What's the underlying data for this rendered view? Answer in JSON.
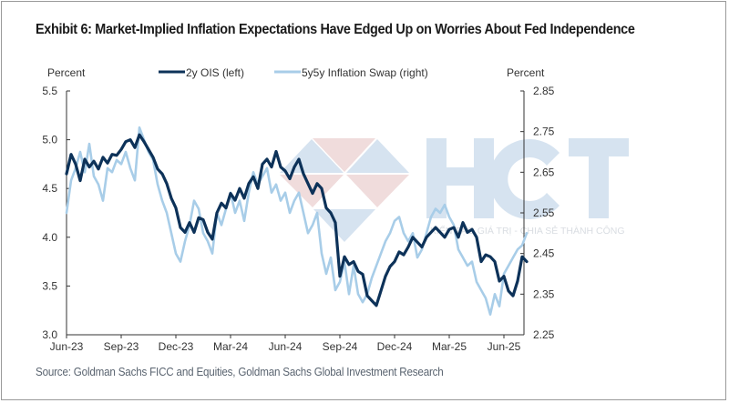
{
  "title": "Exhibit 6: Market-Implied Inflation Expectations Have Edged Up on Worries About Fed Independence",
  "source": "Source: Goldman Sachs FICC and Equities, Goldman Sachs Global Investment Research",
  "watermark": {
    "text": "HCT",
    "tagline": "KIẾN TẠO GIÁ TRỊ - CHIA SẺ THÀNH CÔNG",
    "colors": {
      "blue": "#d6e3f0",
      "red": "#f0dcdc"
    }
  },
  "chart_data": {
    "type": "line",
    "title": "Exhibit 6: Market-Implied Inflation Expectations Have Edged Up on Worries About Fed Independence",
    "xlabel": "",
    "ylabel_left": "Percent",
    "ylabel_right": "Percent",
    "grid": false,
    "legend_placement": "top-center",
    "x_tick_labels": [
      "Jun-23",
      "Sep-23",
      "Dec-23",
      "Mar-24",
      "Jun-24",
      "Sep-24",
      "Dec-24",
      "Mar-25",
      "Jun-25"
    ],
    "x_range_months": [
      0,
      26
    ],
    "y_left": {
      "range": [
        3.0,
        5.5
      ],
      "ticks": [
        "3.0",
        "3.5",
        "4.0",
        "4.5",
        "5.0",
        "5.5"
      ]
    },
    "y_right": {
      "range": [
        2.25,
        2.85
      ],
      "ticks": [
        "2.25",
        "2.35",
        "2.45",
        "2.55",
        "2.65",
        "2.75",
        "2.85"
      ]
    },
    "series": [
      {
        "name": "2y OIS (left)",
        "axis": "left",
        "color": "#0d3259",
        "x_months": [
          0,
          0.25,
          0.5,
          0.75,
          1,
          1.25,
          1.5,
          1.75,
          2,
          2.25,
          2.5,
          2.75,
          3,
          3.25,
          3.5,
          3.75,
          4,
          4.25,
          4.5,
          4.75,
          5,
          5.25,
          5.5,
          5.75,
          6,
          6.25,
          6.5,
          6.75,
          7,
          7.25,
          7.5,
          7.75,
          8,
          8.25,
          8.5,
          8.75,
          9,
          9.25,
          9.5,
          9.75,
          10,
          10.25,
          10.5,
          10.75,
          11,
          11.25,
          11.5,
          11.75,
          12,
          12.25,
          12.5,
          12.75,
          13,
          13.25,
          13.5,
          13.75,
          14,
          14.25,
          14.5,
          14.75,
          15,
          15.25,
          15.5,
          15.75,
          16,
          16.25,
          16.5,
          16.75,
          17,
          17.25,
          17.5,
          17.75,
          18,
          18.25,
          18.5,
          18.75,
          19,
          19.25,
          19.5,
          19.75,
          20,
          20.25,
          20.5,
          20.75,
          21,
          21.25,
          21.5,
          21.75,
          22,
          22.25,
          22.5,
          22.75,
          23,
          23.25,
          23.5,
          23.75,
          24,
          24.25,
          24.5,
          24.75,
          25,
          25.25
        ],
        "values": [
          4.65,
          4.85,
          4.75,
          4.58,
          4.8,
          4.72,
          4.78,
          4.7,
          4.82,
          4.76,
          4.85,
          4.84,
          4.9,
          4.98,
          5.0,
          4.92,
          5.05,
          4.98,
          4.9,
          4.82,
          4.7,
          4.65,
          4.55,
          4.4,
          4.3,
          4.1,
          4.05,
          4.15,
          4.05,
          4.2,
          4.18,
          4.05,
          3.98,
          4.25,
          4.35,
          4.3,
          4.45,
          4.38,
          4.5,
          4.4,
          4.55,
          4.62,
          4.5,
          4.75,
          4.8,
          4.72,
          4.88,
          4.72,
          4.68,
          4.6,
          4.72,
          4.8,
          4.65,
          4.55,
          4.45,
          4.55,
          4.5,
          4.3,
          4.25,
          4.15,
          3.6,
          3.8,
          3.72,
          3.75,
          3.65,
          3.62,
          3.4,
          3.35,
          3.3,
          3.45,
          3.6,
          3.7,
          3.75,
          3.85,
          3.82,
          3.9,
          4.0,
          3.95,
          3.9,
          4.0,
          4.05,
          4.1,
          4.05,
          4.0,
          4.08,
          4.1,
          4.0,
          4.15,
          4.05,
          4.08,
          4.0,
          3.75,
          3.82,
          3.8,
          3.75,
          3.55,
          3.6,
          3.45,
          3.4,
          3.55,
          3.8,
          3.75,
          3.72,
          3.6
        ]
      },
      {
        "name": "5y5y Inflation Swap (right)",
        "axis": "right",
        "color": "#a8cde8",
        "x_months": [
          0,
          0.25,
          0.5,
          0.75,
          1,
          1.25,
          1.5,
          1.75,
          2,
          2.25,
          2.5,
          2.75,
          3,
          3.25,
          3.5,
          3.75,
          4,
          4.25,
          4.5,
          4.75,
          5,
          5.25,
          5.5,
          5.75,
          6,
          6.25,
          6.5,
          6.75,
          7,
          7.25,
          7.5,
          7.75,
          8,
          8.25,
          8.5,
          8.75,
          9,
          9.25,
          9.5,
          9.75,
          10,
          10.25,
          10.5,
          10.75,
          11,
          11.25,
          11.5,
          11.75,
          12,
          12.25,
          12.5,
          12.75,
          13,
          13.25,
          13.5,
          13.75,
          14,
          14.25,
          14.5,
          14.75,
          15,
          15.25,
          15.5,
          15.75,
          16,
          16.25,
          16.5,
          16.75,
          17,
          17.25,
          17.5,
          17.75,
          18,
          18.25,
          18.5,
          18.75,
          19,
          19.25,
          19.5,
          19.75,
          20,
          20.25,
          20.5,
          20.75,
          21,
          21.25,
          21.5,
          21.75,
          22,
          22.25,
          22.5,
          22.75,
          23,
          23.25,
          23.5,
          23.75,
          24,
          24.25,
          24.5,
          24.75,
          25,
          25.25
        ],
        "values": [
          2.55,
          2.63,
          2.66,
          2.7,
          2.65,
          2.72,
          2.64,
          2.62,
          2.58,
          2.66,
          2.65,
          2.68,
          2.67,
          2.7,
          2.66,
          2.63,
          2.76,
          2.73,
          2.7,
          2.68,
          2.62,
          2.58,
          2.55,
          2.5,
          2.45,
          2.43,
          2.48,
          2.52,
          2.58,
          2.56,
          2.5,
          2.48,
          2.45,
          2.55,
          2.52,
          2.56,
          2.6,
          2.55,
          2.58,
          2.53,
          2.6,
          2.65,
          2.62,
          2.64,
          2.66,
          2.6,
          2.62,
          2.58,
          2.6,
          2.55,
          2.58,
          2.6,
          2.55,
          2.5,
          2.52,
          2.55,
          2.45,
          2.4,
          2.44,
          2.36,
          2.38,
          2.43,
          2.35,
          2.42,
          2.35,
          2.33,
          2.35,
          2.39,
          2.42,
          2.45,
          2.48,
          2.5,
          2.53,
          2.54,
          2.5,
          2.48,
          2.5,
          2.44,
          2.46,
          2.5,
          2.54,
          2.56,
          2.55,
          2.57,
          2.54,
          2.52,
          2.46,
          2.44,
          2.42,
          2.43,
          2.38,
          2.36,
          2.34,
          2.3,
          2.35,
          2.32,
          2.4,
          2.42,
          2.44,
          2.46,
          2.47,
          2.5,
          2.54,
          2.56
        ]
      }
    ]
  }
}
